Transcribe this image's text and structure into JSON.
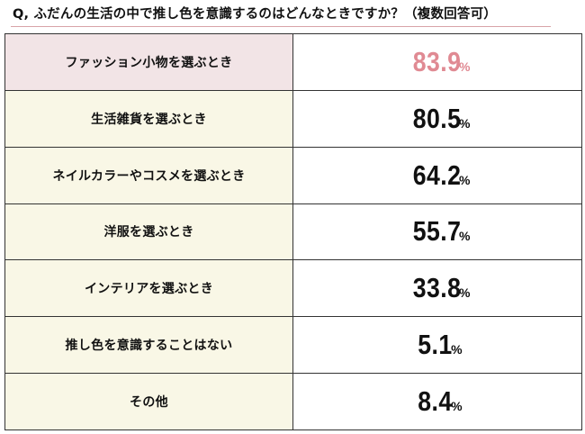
{
  "question": "Q, ふだんの生活の中で推し色を意識するのはどんなときですか？（複数回答可）",
  "highlight_color": "#e08a93",
  "chart_data": {
    "type": "table",
    "title": "Q, ふだんの生活の中で推し色を意識するのはどんなときですか？（複数回答可）",
    "unit": "%",
    "categories": [
      "ファッション小物を選ぶとき",
      "生活雑貨を選ぶとき",
      "ネイルカラーやコスメを選ぶとき",
      "洋服を選ぶとき",
      "インテリアを選ぶとき",
      "推し色を意識することはない",
      "その他"
    ],
    "values": [
      83.9,
      80.5,
      64.2,
      55.7,
      33.8,
      5.1,
      8.4
    ],
    "value_labels": [
      "83.9",
      "80.5",
      "64.2",
      "55.7",
      "33.8",
      "5.1",
      "8.4"
    ]
  }
}
